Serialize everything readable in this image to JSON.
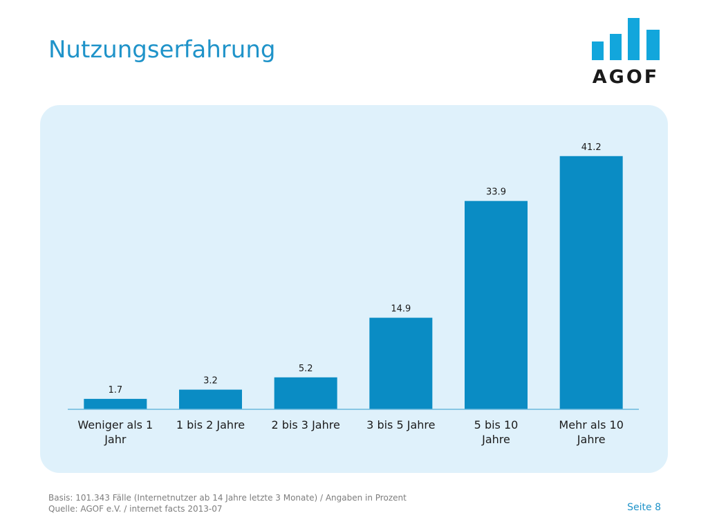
{
  "slide": {
    "title": "Nutzungserfahrung",
    "logo_text": "AGOF",
    "footer_basis": "Basis: 101.343 Fälle (Internetnutzer ab 14 Jahre letzte 3 Monate) / Angaben in Prozent",
    "footer_source": "Quelle: AGOF e.V. / internet facts 2013-07",
    "page_label": "Seite 8"
  },
  "colors": {
    "bar": "#0a8cc4",
    "panel": "#dff1fb",
    "title": "#1f93c9",
    "axis": "#6ab8dc"
  },
  "chart_data": {
    "type": "bar",
    "categories": [
      [
        "Weniger als 1",
        "Jahr"
      ],
      [
        "1 bis 2 Jahre"
      ],
      [
        "2 bis 3 Jahre"
      ],
      [
        "3 bis 5 Jahre"
      ],
      [
        "5 bis 10",
        "Jahre"
      ],
      [
        "Mehr als 10",
        "Jahre"
      ]
    ],
    "values": [
      1.7,
      3.2,
      5.2,
      14.9,
      33.9,
      41.2
    ],
    "value_labels": [
      "1.7",
      "3.2",
      "5.2",
      "14.9",
      "33.9",
      "41.2"
    ],
    "ylim": [
      0,
      45
    ],
    "grid": false,
    "legend": "none"
  }
}
